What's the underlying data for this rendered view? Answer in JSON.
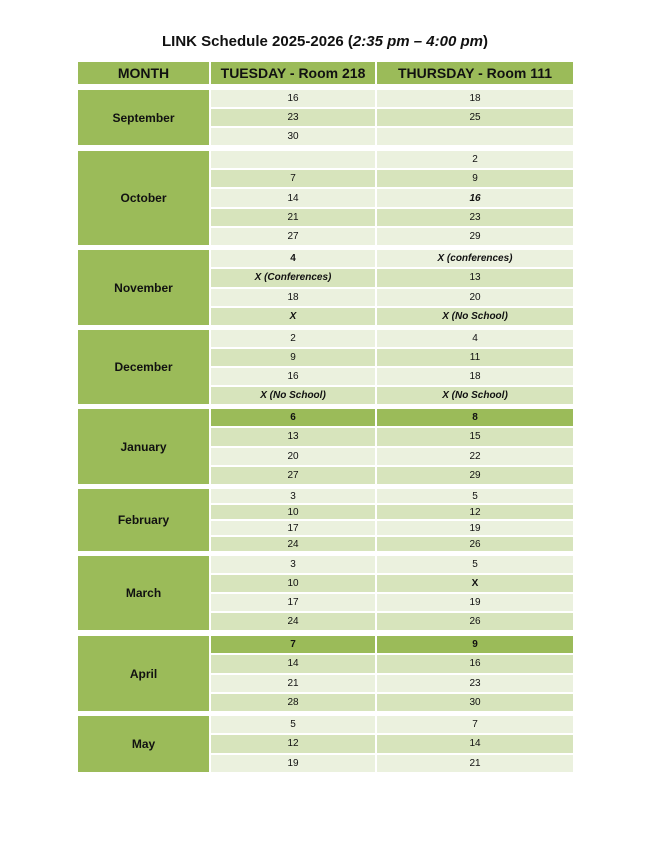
{
  "title": {
    "main": "LINK Schedule 2025-2026 (",
    "time": "2:35 pm – 4:00 pm",
    "close": ")"
  },
  "headers": {
    "month": "MONTH",
    "tuesday": "TUESDAY - Room 218",
    "thursday": "THURSDAY - Room 111"
  },
  "months": [
    {
      "name": "September",
      "rows": [
        [
          "16",
          "18"
        ],
        [
          "23",
          "25"
        ],
        [
          "30",
          ""
        ]
      ]
    },
    {
      "name": "October",
      "rows": [
        [
          "",
          "2"
        ],
        [
          "7",
          "9"
        ],
        [
          "14",
          "16"
        ],
        [
          "21",
          "23"
        ],
        [
          "27",
          "29"
        ]
      ]
    },
    {
      "name": "November",
      "rows": [
        [
          "4",
          "X (conferences)"
        ],
        [
          "X (Conferences)",
          "13"
        ],
        [
          "18",
          "20"
        ],
        [
          "X",
          "X (No School)"
        ]
      ]
    },
    {
      "name": "December",
      "rows": [
        [
          "2",
          "4"
        ],
        [
          "9",
          "11"
        ],
        [
          "16",
          "18"
        ],
        [
          "X (No School)",
          "X (No School)"
        ]
      ]
    },
    {
      "name": "January",
      "rows": [
        [
          "6",
          "8"
        ],
        [
          "13",
          "15"
        ],
        [
          "20",
          "22"
        ],
        [
          "27",
          "29"
        ]
      ]
    },
    {
      "name": "February",
      "rows": [
        [
          "3",
          "5"
        ],
        [
          "10",
          "12"
        ],
        [
          "17",
          "19"
        ],
        [
          "24",
          "26"
        ]
      ]
    },
    {
      "name": "March",
      "rows": [
        [
          "3",
          "5"
        ],
        [
          "10",
          "X"
        ],
        [
          "17",
          "19"
        ],
        [
          "24",
          "26"
        ]
      ]
    },
    {
      "name": "April",
      "rows": [
        [
          "7",
          "9"
        ],
        [
          "14",
          "16"
        ],
        [
          "21",
          "23"
        ],
        [
          "28",
          "30"
        ]
      ]
    },
    {
      "name": "May",
      "rows": [
        [
          "5",
          "7"
        ],
        [
          "12",
          "14"
        ],
        [
          "19",
          "21"
        ]
      ]
    }
  ],
  "colors": {
    "dark": "#9bbb59",
    "mid": "#d7e4bc",
    "light": "#ebf1de"
  }
}
